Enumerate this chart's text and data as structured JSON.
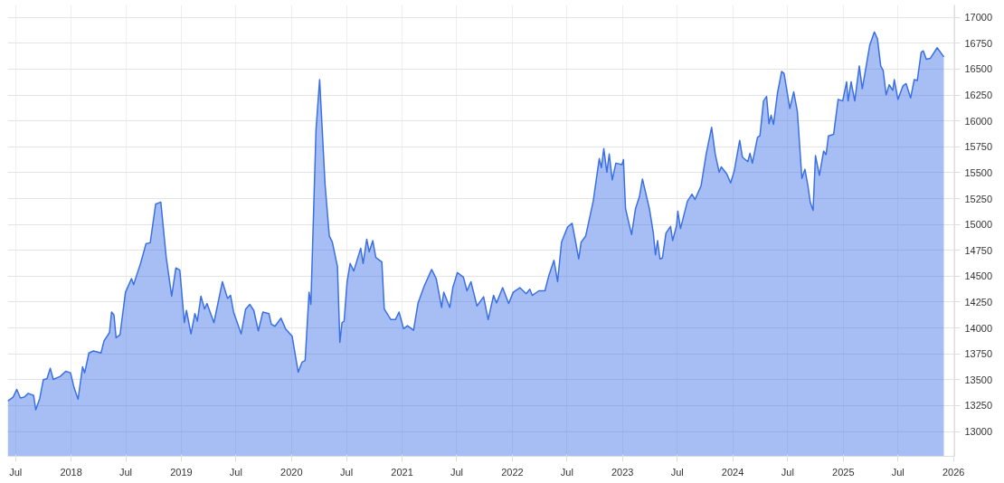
{
  "chart_data": {
    "type": "area",
    "x": [
      "2017-06-05",
      "2017-06-23",
      "2017-07-05",
      "2017-07-17",
      "2017-07-30",
      "2017-08-12",
      "2017-08-30",
      "2017-09-06",
      "2017-09-19",
      "2017-10-01",
      "2017-10-13",
      "2017-10-24",
      "2017-11-03",
      "2017-11-26",
      "2017-12-14",
      "2017-12-30",
      "2018-01-11",
      "2018-01-24",
      "2018-02-08",
      "2018-02-15",
      "2018-03-01",
      "2018-03-16",
      "2018-04-10",
      "2018-04-20",
      "2018-05-08",
      "2018-05-15",
      "2018-05-23",
      "2018-05-30",
      "2018-06-12",
      "2018-06-30",
      "2018-07-20",
      "2018-07-27",
      "2018-08-04",
      "2018-08-19",
      "2018-09-06",
      "2018-09-20",
      "2018-10-08",
      "2018-10-25",
      "2018-11-12",
      "2018-11-30",
      "2018-12-14",
      "2018-12-27",
      "2019-01-11",
      "2019-01-18",
      "2019-02-02",
      "2019-02-15",
      "2019-02-23",
      "2019-03-07",
      "2019-03-19",
      "2019-03-27",
      "2019-04-19",
      "2019-05-17",
      "2019-06-03",
      "2019-06-13",
      "2019-06-23",
      "2019-07-18",
      "2019-08-02",
      "2019-08-16",
      "2019-08-29",
      "2019-09-13",
      "2019-09-28",
      "2019-10-18",
      "2019-10-26",
      "2019-11-07",
      "2019-11-27",
      "2019-12-12",
      "2020-01-03",
      "2020-01-23",
      "2020-02-05",
      "2020-02-15",
      "2020-02-28",
      "2020-03-05",
      "2020-03-22",
      "2020-04-03",
      "2020-04-21",
      "2020-05-05",
      "2020-05-15",
      "2020-06-01",
      "2020-06-09",
      "2020-06-16",
      "2020-06-23",
      "2020-07-03",
      "2020-07-13",
      "2020-07-25",
      "2020-08-17",
      "2020-08-25",
      "2020-09-06",
      "2020-09-14",
      "2020-09-26",
      "2020-10-06",
      "2020-10-26",
      "2020-11-03",
      "2020-11-25",
      "2020-12-10",
      "2020-12-22",
      "2021-01-06",
      "2021-01-19",
      "2021-02-08",
      "2021-02-23",
      "2021-03-15",
      "2021-04-09",
      "2021-04-24",
      "2021-05-12",
      "2021-05-19",
      "2021-06-08",
      "2021-06-18",
      "2021-07-03",
      "2021-07-23",
      "2021-08-04",
      "2021-08-17",
      "2021-09-06",
      "2021-09-28",
      "2021-10-13",
      "2021-10-31",
      "2021-11-10",
      "2021-11-30",
      "2021-12-20",
      "2022-01-04",
      "2022-01-26",
      "2022-02-16",
      "2022-02-28",
      "2022-03-08",
      "2022-03-30",
      "2022-04-19",
      "2022-05-02",
      "2022-05-19",
      "2022-05-31",
      "2022-06-13",
      "2022-07-03",
      "2022-07-18",
      "2022-07-28",
      "2022-08-09",
      "2022-08-17",
      "2022-09-01",
      "2022-09-26",
      "2022-10-16",
      "2022-10-23",
      "2022-10-31",
      "2022-11-10",
      "2022-11-18",
      "2022-11-28",
      "2022-12-10",
      "2022-12-30",
      "2023-01-04",
      "2023-01-11",
      "2023-01-31",
      "2023-02-13",
      "2023-02-26",
      "2023-03-08",
      "2023-03-31",
      "2023-04-13",
      "2023-04-20",
      "2023-04-27",
      "2023-05-05",
      "2023-05-13",
      "2023-05-25",
      "2023-06-09",
      "2023-06-16",
      "2023-06-29",
      "2023-07-03",
      "2023-07-12",
      "2023-08-04",
      "2023-08-19",
      "2023-08-29",
      "2023-09-18",
      "2023-10-05",
      "2023-10-23",
      "2023-11-04",
      "2023-11-17",
      "2023-11-24",
      "2023-12-12",
      "2023-12-25",
      "2024-01-06",
      "2024-01-24",
      "2024-02-02",
      "2024-02-20",
      "2024-02-27",
      "2024-03-06",
      "2024-03-23",
      "2024-03-31",
      "2024-04-12",
      "2024-04-22",
      "2024-04-30",
      "2024-05-07",
      "2024-05-15",
      "2024-05-28",
      "2024-06-11",
      "2024-06-19",
      "2024-07-08",
      "2024-07-21",
      "2024-08-02",
      "2024-08-17",
      "2024-08-27",
      "2024-09-06",
      "2024-09-14",
      "2024-09-23",
      "2024-10-01",
      "2024-10-14",
      "2024-10-28",
      "2024-11-05",
      "2024-11-13",
      "2024-11-30",
      "2024-12-15",
      "2024-12-30",
      "2025-01-12",
      "2025-01-17",
      "2025-01-27",
      "2025-02-08",
      "2025-02-23",
      "2025-03-05",
      "2025-03-30",
      "2025-04-14",
      "2025-04-24",
      "2025-05-05",
      "2025-05-13",
      "2025-05-23",
      "2025-06-02",
      "2025-06-14",
      "2025-06-19",
      "2025-07-01",
      "2025-07-18",
      "2025-07-28",
      "2025-08-12",
      "2025-08-24",
      "2025-09-03",
      "2025-09-16",
      "2025-09-23",
      "2025-10-03",
      "2025-10-16",
      "2025-11-08",
      "2025-11-30"
    ],
    "series": [
      {
        "color": "#3b6fe6",
        "values": [
          13294,
          13332,
          13406,
          13324,
          13332,
          13368,
          13347,
          13209,
          13318,
          13500,
          13509,
          13611,
          13503,
          13532,
          13582,
          13567,
          13421,
          13312,
          13626,
          13567,
          13758,
          13778,
          13758,
          13875,
          13955,
          14154,
          14125,
          13905,
          13934,
          14345,
          14477,
          14418,
          14491,
          14623,
          14814,
          14823,
          15196,
          15216,
          14682,
          14307,
          14580,
          14559,
          14051,
          14169,
          13943,
          14139,
          14066,
          14307,
          14183,
          14236,
          14051,
          14447,
          14286,
          14315,
          14154,
          13943,
          14183,
          14227,
          14169,
          13972,
          14154,
          14139,
          14037,
          14016,
          14095,
          13993,
          13919,
          13573,
          13670,
          13685,
          14345,
          14227,
          15914,
          16399,
          15386,
          14888,
          14829,
          14594,
          13861,
          14051,
          14066,
          14447,
          14623,
          14550,
          14770,
          14623,
          14858,
          14735,
          14843,
          14682,
          14638,
          14183,
          14081,
          14081,
          14154,
          13993,
          14022,
          13978,
          14242,
          14403,
          14565,
          14477,
          14198,
          14345,
          14198,
          14389,
          14535,
          14491,
          14359,
          14447,
          14213,
          14301,
          14081,
          14315,
          14242,
          14389,
          14236,
          14345,
          14389,
          14330,
          14374,
          14315,
          14359,
          14359,
          14506,
          14653,
          14447,
          14829,
          14975,
          15011,
          14858,
          14667,
          14829,
          14888,
          15225,
          15636,
          15548,
          15732,
          15504,
          15680,
          15430,
          15592,
          15577,
          15627,
          15152,
          14902,
          15152,
          15269,
          15439,
          15152,
          14917,
          14706,
          14844,
          14667,
          14676,
          14917,
          14981,
          14844,
          14990,
          15128,
          14961,
          15225,
          15292,
          15240,
          15372,
          15680,
          15938,
          15680,
          15504,
          15556,
          15489,
          15401,
          15518,
          15812,
          15650,
          15606,
          15688,
          15592,
          15841,
          15856,
          16193,
          16237,
          15973,
          16055,
          15967,
          16266,
          16478,
          16457,
          16120,
          16281,
          16090,
          15445,
          15533,
          15372,
          15210,
          15137,
          15665,
          15474,
          15709,
          15674,
          15856,
          15870,
          16208,
          16193,
          16378,
          16193,
          16378,
          16193,
          16531,
          16311,
          16736,
          16859,
          16795,
          16531,
          16487,
          16252,
          16349,
          16296,
          16399,
          16208,
          16340,
          16360,
          16222,
          16399,
          16390,
          16663,
          16677,
          16595,
          16604,
          16707,
          16619
        ]
      }
    ],
    "xlim": [
      "2017-06-05",
      "2026-01-05"
    ],
    "xticks": [
      {
        "value": "2017-07-01",
        "label": "Jul"
      },
      {
        "value": "2018-01-01",
        "label": "2018"
      },
      {
        "value": "2018-07-01",
        "label": "Jul"
      },
      {
        "value": "2019-01-01",
        "label": "2019"
      },
      {
        "value": "2019-07-01",
        "label": "Jul"
      },
      {
        "value": "2020-01-01",
        "label": "2020"
      },
      {
        "value": "2020-07-01",
        "label": "Jul"
      },
      {
        "value": "2021-01-01",
        "label": "2021"
      },
      {
        "value": "2021-07-01",
        "label": "Jul"
      },
      {
        "value": "2022-01-01",
        "label": "2022"
      },
      {
        "value": "2022-07-01",
        "label": "Jul"
      },
      {
        "value": "2023-01-01",
        "label": "2023"
      },
      {
        "value": "2023-07-01",
        "label": "Jul"
      },
      {
        "value": "2024-01-01",
        "label": "2024"
      },
      {
        "value": "2024-07-01",
        "label": "Jul"
      },
      {
        "value": "2025-01-01",
        "label": "2025"
      },
      {
        "value": "2025-07-01",
        "label": "Jul"
      },
      {
        "value": "2026-01-01",
        "label": "2026"
      }
    ],
    "ylim": [
      12760,
      17120
    ],
    "yticks": [
      13000,
      13250,
      13500,
      13750,
      14000,
      14250,
      14500,
      14750,
      15000,
      15250,
      15500,
      15750,
      16000,
      16250,
      16500,
      16750,
      17000
    ],
    "grid": true
  }
}
